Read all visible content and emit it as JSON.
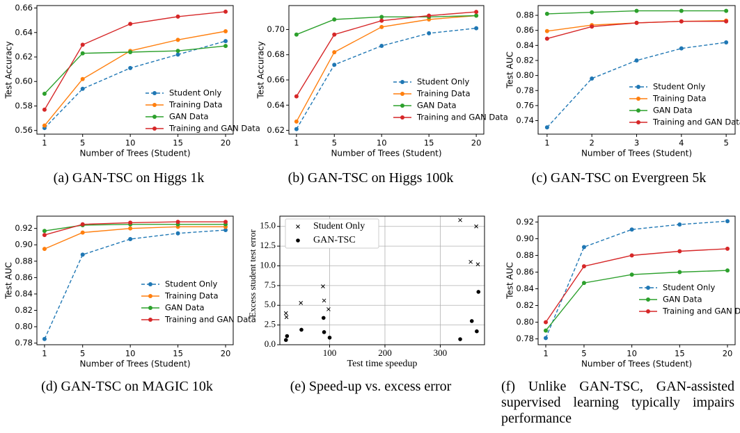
{
  "chart_data": [
    {
      "id": "a",
      "type": "line",
      "caption": "(a) GAN-TSC on Higgs 1k",
      "xlabel": "Number of Trees (Student)",
      "ylabel": "Test Accuracy",
      "x": [
        1,
        5,
        10,
        15,
        20
      ],
      "xticks": [
        "1",
        "5",
        "10",
        "15",
        "20"
      ],
      "xlim": [
        0.2,
        20.8
      ],
      "ylim": [
        0.557,
        0.662
      ],
      "yticks": [
        "0.56",
        "0.58",
        "0.60",
        "0.62",
        "0.64",
        "0.66"
      ],
      "legend_position": "lower-right",
      "series": [
        {
          "name": "Student Only",
          "color": "#1f77b4",
          "dashed": true,
          "values": [
            0.562,
            0.594,
            0.611,
            0.622,
            0.633
          ]
        },
        {
          "name": "Training Data",
          "color": "#ff7f0e",
          "dashed": false,
          "values": [
            0.564,
            0.602,
            0.625,
            0.634,
            0.641
          ]
        },
        {
          "name": "GAN Data",
          "color": "#2ca02c",
          "dashed": false,
          "values": [
            0.59,
            0.623,
            0.624,
            0.625,
            0.629
          ]
        },
        {
          "name": "Training and GAN Data",
          "color": "#d62728",
          "dashed": false,
          "values": [
            0.577,
            0.63,
            0.647,
            0.653,
            0.657
          ]
        }
      ]
    },
    {
      "id": "b",
      "type": "line",
      "caption": "(b) GAN-TSC on Higgs 100k",
      "xlabel": "Number of Trees (Student)",
      "ylabel": "Test Accuracy",
      "x": [
        1,
        5,
        10,
        15,
        20
      ],
      "xticks": [
        "1",
        "5",
        "10",
        "15",
        "20"
      ],
      "xlim": [
        0.2,
        20.8
      ],
      "ylim": [
        0.617,
        0.719
      ],
      "yticks": [
        "0.62",
        "0.64",
        "0.66",
        "0.68",
        "0.70"
      ],
      "legend_position": "lower-right",
      "series": [
        {
          "name": "Student Only",
          "color": "#1f77b4",
          "dashed": true,
          "values": [
            0.621,
            0.672,
            0.687,
            0.697,
            0.701
          ]
        },
        {
          "name": "Training Data",
          "color": "#ff7f0e",
          "dashed": false,
          "values": [
            0.627,
            0.682,
            0.702,
            0.708,
            0.711
          ]
        },
        {
          "name": "GAN Data",
          "color": "#2ca02c",
          "dashed": false,
          "values": [
            0.696,
            0.708,
            0.71,
            0.71,
            0.711
          ]
        },
        {
          "name": "Training and GAN Data",
          "color": "#d62728",
          "dashed": false,
          "values": [
            0.647,
            0.696,
            0.707,
            0.711,
            0.714
          ]
        }
      ]
    },
    {
      "id": "c",
      "type": "line",
      "caption": "(c) GAN-TSC on Evergreen 5k",
      "xlabel": "Number of Trees (Student)",
      "ylabel": "Test AUC",
      "x": [
        1,
        2,
        3,
        4,
        5
      ],
      "xticks": [
        "1",
        "2",
        "3",
        "4",
        "5"
      ],
      "xlim": [
        0.8,
        5.2
      ],
      "ylim": [
        0.722,
        0.893
      ],
      "yticks": [
        "0.74",
        "0.76",
        "0.78",
        "0.80",
        "0.82",
        "0.84",
        "0.86",
        "0.88"
      ],
      "legend_position": "lower-right",
      "series": [
        {
          "name": "Student Only",
          "color": "#1f77b4",
          "dashed": true,
          "values": [
            0.731,
            0.796,
            0.82,
            0.836,
            0.844
          ]
        },
        {
          "name": "Training Data",
          "color": "#ff7f0e",
          "dashed": false,
          "values": [
            0.859,
            0.867,
            0.87,
            0.872,
            0.873
          ]
        },
        {
          "name": "GAN Data",
          "color": "#2ca02c",
          "dashed": false,
          "values": [
            0.882,
            0.884,
            0.886,
            0.886,
            0.886
          ]
        },
        {
          "name": "Training and GAN Data",
          "color": "#d62728",
          "dashed": false,
          "values": [
            0.849,
            0.865,
            0.87,
            0.872,
            0.872
          ]
        }
      ]
    },
    {
      "id": "d",
      "type": "line",
      "caption": "(d) GAN-TSC on MAGIC 10k",
      "xlabel": "Number of Trees (Student)",
      "ylabel": "Test AUC",
      "x": [
        1,
        5,
        10,
        15,
        20
      ],
      "xticks": [
        "1",
        "5",
        "10",
        "15",
        "20"
      ],
      "xlim": [
        0.2,
        20.8
      ],
      "ylim": [
        0.778,
        0.935
      ],
      "yticks": [
        "0.78",
        "0.80",
        "0.82",
        "0.84",
        "0.86",
        "0.88",
        "0.90",
        "0.92"
      ],
      "legend_position": "lower-right",
      "series": [
        {
          "name": "Student Only",
          "color": "#1f77b4",
          "dashed": true,
          "values": [
            0.785,
            0.888,
            0.907,
            0.914,
            0.918
          ]
        },
        {
          "name": "Training Data",
          "color": "#ff7f0e",
          "dashed": false,
          "values": [
            0.895,
            0.915,
            0.92,
            0.922,
            0.922
          ]
        },
        {
          "name": "GAN Data",
          "color": "#2ca02c",
          "dashed": false,
          "values": [
            0.917,
            0.924,
            0.925,
            0.925,
            0.925
          ]
        },
        {
          "name": "Training and GAN Data",
          "color": "#d62728",
          "dashed": false,
          "values": [
            0.912,
            0.925,
            0.927,
            0.928,
            0.928
          ]
        }
      ]
    },
    {
      "id": "e",
      "type": "scatter",
      "caption": "(e) Speed-up vs. excess error",
      "xlabel": "Test time speedup",
      "ylabel": "Excess student test error",
      "xlim": [
        10,
        380
      ],
      "ylim": [
        0,
        16.3
      ],
      "xtick_values": [
        100,
        200,
        300
      ],
      "xticks": [
        "100",
        "200",
        "300"
      ],
      "ytick_values": [
        0,
        2.5,
        5,
        7.5,
        10,
        12.5,
        15
      ],
      "yticks": [
        "0.0",
        "2.5",
        "5.0",
        "7.5",
        "10.0",
        "12.5",
        "15.0"
      ],
      "grid": true,
      "legend_position": "top-left",
      "series": [
        {
          "name": "Student Only",
          "marker": "x",
          "points": [
            [
              21,
              4.0
            ],
            [
              22,
              3.5
            ],
            [
              48,
              5.3
            ],
            [
              88,
              7.4
            ],
            [
              90,
              5.6
            ],
            [
              98,
              4.5
            ],
            [
              336,
              15.8
            ],
            [
              355,
              10.5
            ],
            [
              365,
              15.0
            ],
            [
              368,
              10.2
            ]
          ]
        },
        {
          "name": "GAN-TSC",
          "marker": "dot",
          "points": [
            [
              21,
              0.6
            ],
            [
              23,
              1.1
            ],
            [
              49,
              1.9
            ],
            [
              89,
              3.4
            ],
            [
              90,
              1.6
            ],
            [
              100,
              0.9
            ],
            [
              336,
              0.7
            ],
            [
              357,
              3.0
            ],
            [
              366,
              1.7
            ],
            [
              369,
              6.7
            ]
          ]
        }
      ]
    },
    {
      "id": "f",
      "type": "line",
      "caption": "(f) Unlike GAN-TSC, GAN-assisted supervised learning typically impairs performance",
      "xlabel": "Number of Trees (Student)",
      "ylabel": "Test AUC",
      "x": [
        1,
        5,
        10,
        15,
        20
      ],
      "xticks": [
        "1",
        "5",
        "10",
        "15",
        "20"
      ],
      "xlim": [
        0.2,
        20.8
      ],
      "ylim": [
        0.773,
        0.927
      ],
      "yticks": [
        "0.78",
        "0.80",
        "0.82",
        "0.84",
        "0.86",
        "0.88",
        "0.90",
        "0.92"
      ],
      "legend_position": "center-right",
      "series": [
        {
          "name": "Student Only",
          "color": "#1f77b4",
          "dashed": true,
          "values": [
            0.781,
            0.89,
            0.911,
            0.917,
            0.921
          ]
        },
        {
          "name": "GAN Data",
          "color": "#2ca02c",
          "dashed": false,
          "values": [
            0.79,
            0.847,
            0.857,
            0.86,
            0.862
          ]
        },
        {
          "name": "Training and GAN Data",
          "color": "#d62728",
          "dashed": false,
          "values": [
            0.8,
            0.867,
            0.88,
            0.885,
            0.888
          ]
        }
      ]
    }
  ]
}
